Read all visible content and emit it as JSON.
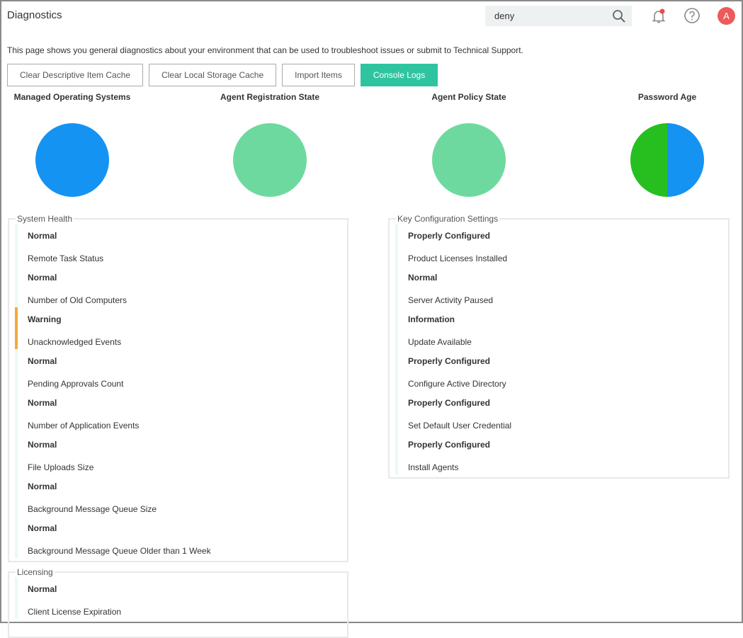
{
  "header": {
    "title": "Diagnostics",
    "search_value": "deny",
    "avatar_initial": "A",
    "search_icon": "search-icon",
    "notification_icon": "bell-icon",
    "help_icon": "help-circle-icon"
  },
  "intro": "This page shows you general diagnostics about your environment that can be used to troubleshoot issues or submit to Technical Support.",
  "buttons": [
    "Clear Descriptive Item Cache",
    "Clear Local Storage Cache",
    "Import Items",
    "Console Logs"
  ],
  "colors": {
    "accent": "#2fc4a0",
    "blue": "#1493f2",
    "light_green": "#6ed99f",
    "green": "#27bf20",
    "warning": "#f3a93b",
    "normal": "#e9f9f8",
    "avatar": "#ec5b5b"
  },
  "chart_data": [
    {
      "type": "pie",
      "title": "Managed Operating Systems",
      "values": [
        1
      ],
      "colors": [
        "#1493f2"
      ]
    },
    {
      "type": "pie",
      "title": "Agent Registration State",
      "values": [
        1
      ],
      "colors": [
        "#6ed99f"
      ]
    },
    {
      "type": "pie",
      "title": "Agent Policy State",
      "values": [
        1
      ],
      "colors": [
        "#6ed99f"
      ]
    },
    {
      "type": "pie",
      "title": "Password Age",
      "values": [
        1,
        1
      ],
      "colors": [
        "#1493f2",
        "#27bf20"
      ]
    }
  ],
  "system_health": {
    "title": "System Health",
    "items": [
      {
        "status": "Normal",
        "label": "Remote Task Status"
      },
      {
        "status": "Normal",
        "label": "Number of Old Computers"
      },
      {
        "status": "Warning",
        "label": "Unacknowledged Events"
      },
      {
        "status": "Normal",
        "label": "Pending Approvals Count"
      },
      {
        "status": "Normal",
        "label": "Number of Application Events"
      },
      {
        "status": "Normal",
        "label": "File Uploads Size"
      },
      {
        "status": "Normal",
        "label": "Background Message Queue Size"
      },
      {
        "status": "Normal",
        "label": "Background Message Queue Older than 1 Week"
      }
    ]
  },
  "key_config": {
    "title": "Key Configuration Settings",
    "items": [
      {
        "status": "Properly Configured",
        "label": "Product Licenses Installed"
      },
      {
        "status": "Normal",
        "label": "Server Activity Paused"
      },
      {
        "status": "Information",
        "label": "Update Available"
      },
      {
        "status": "Properly Configured",
        "label": "Configure Active Directory"
      },
      {
        "status": "Properly Configured",
        "label": "Set Default User Credential"
      },
      {
        "status": "Properly Configured",
        "label": "Install Agents"
      }
    ]
  },
  "licensing": {
    "title": "Licensing",
    "items": [
      {
        "status": "Normal",
        "label": "Client License Expiration"
      }
    ]
  }
}
